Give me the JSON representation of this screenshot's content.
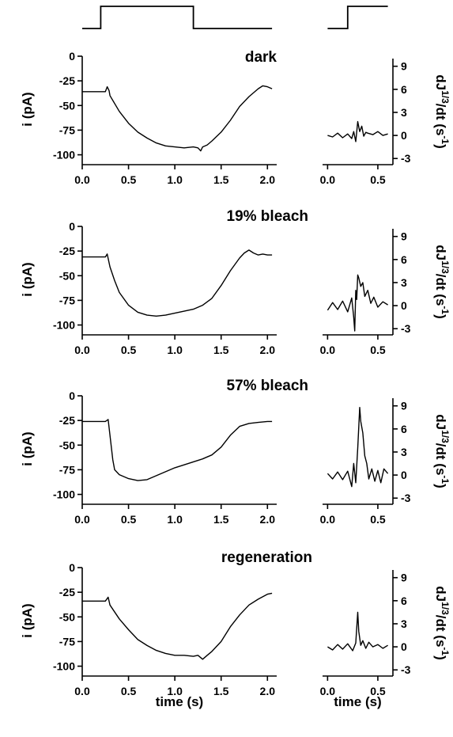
{
  "chart_data": [
    {
      "type": "line",
      "title": "dark",
      "xlabel": "",
      "ylabel": "i (pA)",
      "xlim": [
        0.0,
        2.1
      ],
      "ylim": [
        -110,
        0
      ],
      "xticks": [
        0.0,
        0.5,
        1.0,
        1.5,
        2.0
      ],
      "xtick_labels": [
        "0.0",
        "0.5",
        "1.0",
        "1.5",
        "2.0"
      ],
      "yticks": [
        0,
        -25,
        -50,
        -75,
        -100
      ],
      "ytick_labels": [
        "0",
        "-25",
        "-50",
        "-75",
        "-100"
      ],
      "series": [
        {
          "x": [
            0.0,
            0.25,
            0.27,
            0.29,
            0.3,
            0.4,
            0.5,
            0.6,
            0.7,
            0.8,
            0.9,
            1.0,
            1.1,
            1.2,
            1.25,
            1.28,
            1.3,
            1.35,
            1.4,
            1.5,
            1.6,
            1.7,
            1.8,
            1.9,
            1.95,
            2.0,
            2.05
          ],
          "y": [
            -36,
            -36,
            -31,
            -35,
            -40,
            -56,
            -68,
            -77,
            -83,
            -88,
            -91,
            -92,
            -93,
            -92,
            -93,
            -96,
            -92,
            -90,
            -86,
            -77,
            -65,
            -51,
            -41,
            -33,
            -30,
            -31,
            -33
          ]
        }
      ]
    },
    {
      "type": "line",
      "title": "",
      "xlabel": "",
      "ylabel": "dJ1/3/dt (s-1)",
      "xlim": [
        -0.05,
        0.65
      ],
      "ylim": [
        -3.8,
        10
      ],
      "xticks": [
        0.0,
        0.5
      ],
      "xtick_labels": [
        "0.0",
        "0.5"
      ],
      "yticks": [
        9,
        6,
        3,
        0,
        -3
      ],
      "ytick_labels": [
        "9",
        "6",
        "3",
        "0",
        "-3"
      ],
      "series": [
        {
          "x": [
            0.0,
            0.05,
            0.1,
            0.15,
            0.2,
            0.24,
            0.26,
            0.28,
            0.3,
            0.32,
            0.34,
            0.36,
            0.38,
            0.4,
            0.45,
            0.5,
            0.55,
            0.6
          ],
          "y": [
            0,
            -0.2,
            0.3,
            -0.3,
            0.2,
            -0.4,
            0.5,
            -0.8,
            1.8,
            0.5,
            1.2,
            -0.1,
            0.4,
            0.3,
            0.1,
            0.5,
            0.0,
            0.2
          ]
        }
      ]
    },
    {
      "type": "line",
      "title": "19% bleach",
      "xlabel": "",
      "ylabel": "i (pA)",
      "xlim": [
        0.0,
        2.1
      ],
      "ylim": [
        -110,
        0
      ],
      "xticks": [
        0.0,
        0.5,
        1.0,
        1.5,
        2.0
      ],
      "xtick_labels": [
        "0.0",
        "0.5",
        "1.0",
        "1.5",
        "2.0"
      ],
      "yticks": [
        0,
        -25,
        -50,
        -75,
        -100
      ],
      "ytick_labels": [
        "0",
        "-25",
        "-50",
        "-75",
        "-100"
      ],
      "series": [
        {
          "x": [
            0.0,
            0.25,
            0.27,
            0.3,
            0.35,
            0.4,
            0.5,
            0.6,
            0.7,
            0.8,
            0.9,
            1.0,
            1.1,
            1.2,
            1.25,
            1.3,
            1.4,
            1.5,
            1.6,
            1.7,
            1.75,
            1.8,
            1.85,
            1.9,
            1.95,
            2.0,
            2.05
          ],
          "y": [
            -31,
            -31,
            -28,
            -41,
            -55,
            -67,
            -80,
            -87,
            -90,
            -91,
            -90,
            -88,
            -86,
            -84,
            -82,
            -80,
            -73,
            -60,
            -45,
            -32,
            -27,
            -24,
            -27,
            -29,
            -28,
            -29,
            -29
          ]
        }
      ]
    },
    {
      "type": "line",
      "title": "",
      "xlabel": "",
      "ylabel": "dJ1/3/dt (s-1)",
      "xlim": [
        -0.05,
        0.65
      ],
      "ylim": [
        -3.8,
        10
      ],
      "xticks": [
        0.0,
        0.5
      ],
      "xtick_labels": [
        "0.0",
        "0.5"
      ],
      "yticks": [
        9,
        6,
        3,
        0,
        -3
      ],
      "ytick_labels": [
        "9",
        "6",
        "3",
        "0",
        "-3"
      ],
      "series": [
        {
          "x": [
            0.0,
            0.05,
            0.1,
            0.15,
            0.2,
            0.24,
            0.26,
            0.27,
            0.28,
            0.29,
            0.3,
            0.31,
            0.33,
            0.35,
            0.37,
            0.4,
            0.43,
            0.46,
            0.5,
            0.55,
            0.6
          ],
          "y": [
            -0.6,
            0.4,
            -0.5,
            0.6,
            -0.8,
            1.0,
            -1.5,
            -3.3,
            2.0,
            0.8,
            4.0,
            3.6,
            2.5,
            3.0,
            1.2,
            2.0,
            0.3,
            1.1,
            -0.2,
            0.5,
            0.1
          ]
        }
      ]
    },
    {
      "type": "line",
      "title": "57% bleach",
      "xlabel": "",
      "ylabel": "i (pA)",
      "xlim": [
        0.0,
        2.1
      ],
      "ylim": [
        -110,
        0
      ],
      "xticks": [
        0.0,
        0.5,
        1.0,
        1.5,
        2.0
      ],
      "xtick_labels": [
        "0.0",
        "0.5",
        "1.0",
        "1.5",
        "2.0"
      ],
      "yticks": [
        0,
        -25,
        -50,
        -75,
        -100
      ],
      "ytick_labels": [
        "0",
        "-25",
        "-50",
        "-75",
        "-100"
      ],
      "series": [
        {
          "x": [
            0.0,
            0.25,
            0.28,
            0.3,
            0.33,
            0.35,
            0.4,
            0.5,
            0.6,
            0.7,
            0.8,
            0.9,
            1.0,
            1.1,
            1.2,
            1.3,
            1.35,
            1.4,
            1.5,
            1.6,
            1.7,
            1.8,
            1.9,
            2.0,
            2.05
          ],
          "y": [
            -26,
            -26,
            -24,
            -40,
            -65,
            -75,
            -80,
            -84,
            -86,
            -85,
            -81,
            -77,
            -73,
            -70,
            -67,
            -64,
            -62,
            -60,
            -52,
            -40,
            -31,
            -28,
            -27,
            -26,
            -26
          ]
        }
      ]
    },
    {
      "type": "line",
      "title": "",
      "xlabel": "",
      "ylabel": "dJ1/3/dt (s-1)",
      "xlim": [
        -0.05,
        0.65
      ],
      "ylim": [
        -3.8,
        10
      ],
      "xticks": [
        0.0,
        0.5
      ],
      "xtick_labels": [
        "0.0",
        "0.5"
      ],
      "yticks": [
        9,
        6,
        3,
        0,
        -3
      ],
      "ytick_labels": [
        "9",
        "6",
        "3",
        "0",
        "-3"
      ],
      "series": [
        {
          "x": [
            0.0,
            0.05,
            0.1,
            0.15,
            0.2,
            0.24,
            0.26,
            0.28,
            0.3,
            0.32,
            0.33,
            0.35,
            0.37,
            0.39,
            0.41,
            0.44,
            0.47,
            0.5,
            0.53,
            0.56,
            0.6
          ],
          "y": [
            0.2,
            -0.5,
            0.4,
            -0.6,
            0.5,
            -1.5,
            1.5,
            -1.0,
            3.5,
            8.8,
            7.0,
            5.5,
            2.5,
            1.5,
            -0.5,
            0.8,
            -0.8,
            0.6,
            -1.0,
            0.8,
            0.2
          ]
        }
      ]
    },
    {
      "type": "line",
      "title": "regeneration",
      "xlabel": "time (s)",
      "ylabel": "i (pA)",
      "xlim": [
        0.0,
        2.1
      ],
      "ylim": [
        -110,
        0
      ],
      "xticks": [
        0.0,
        0.5,
        1.0,
        1.5,
        2.0
      ],
      "xtick_labels": [
        "0.0",
        "0.5",
        "1.0",
        "1.5",
        "2.0"
      ],
      "yticks": [
        0,
        -25,
        -50,
        -75,
        -100
      ],
      "ytick_labels": [
        "0",
        "-25",
        "-50",
        "-75",
        "-100"
      ],
      "series": [
        {
          "x": [
            0.0,
            0.25,
            0.28,
            0.3,
            0.4,
            0.5,
            0.6,
            0.7,
            0.8,
            0.9,
            1.0,
            1.1,
            1.2,
            1.25,
            1.3,
            1.35,
            1.4,
            1.5,
            1.6,
            1.7,
            1.8,
            1.9,
            2.0,
            2.05
          ],
          "y": [
            -34,
            -34,
            -30,
            -38,
            -52,
            -63,
            -73,
            -79,
            -84,
            -87,
            -89,
            -89,
            -90,
            -89,
            -93,
            -89,
            -85,
            -75,
            -60,
            -48,
            -38,
            -32,
            -27,
            -26
          ]
        }
      ]
    },
    {
      "type": "line",
      "title": "",
      "xlabel": "time (s)",
      "ylabel": "dJ1/3/dt (s-1)",
      "xlim": [
        -0.05,
        0.65
      ],
      "ylim": [
        -3.8,
        10
      ],
      "xticks": [
        0.0,
        0.5
      ],
      "xtick_labels": [
        "0.0",
        "0.5"
      ],
      "yticks": [
        9,
        6,
        3,
        0,
        -3
      ],
      "ytick_labels": [
        "9",
        "6",
        "3",
        "0",
        "-3"
      ],
      "series": [
        {
          "x": [
            0.0,
            0.05,
            0.1,
            0.15,
            0.2,
            0.25,
            0.28,
            0.3,
            0.31,
            0.33,
            0.35,
            0.38,
            0.41,
            0.45,
            0.5,
            0.55,
            0.6
          ],
          "y": [
            0.0,
            -0.4,
            0.3,
            -0.3,
            0.4,
            -0.5,
            0.5,
            4.5,
            2.0,
            0.2,
            0.8,
            -0.2,
            0.6,
            0.0,
            0.3,
            -0.2,
            0.2
          ]
        }
      ]
    }
  ],
  "stimulus": [
    {
      "t": [
        0.0,
        0.2,
        0.2,
        1.2,
        1.2,
        2.05
      ],
      "level": [
        0,
        0,
        1,
        1,
        0,
        0
      ]
    },
    {
      "t": [
        0.0,
        0.2,
        0.2,
        0.6
      ],
      "level": [
        0,
        0,
        1,
        1
      ]
    }
  ]
}
